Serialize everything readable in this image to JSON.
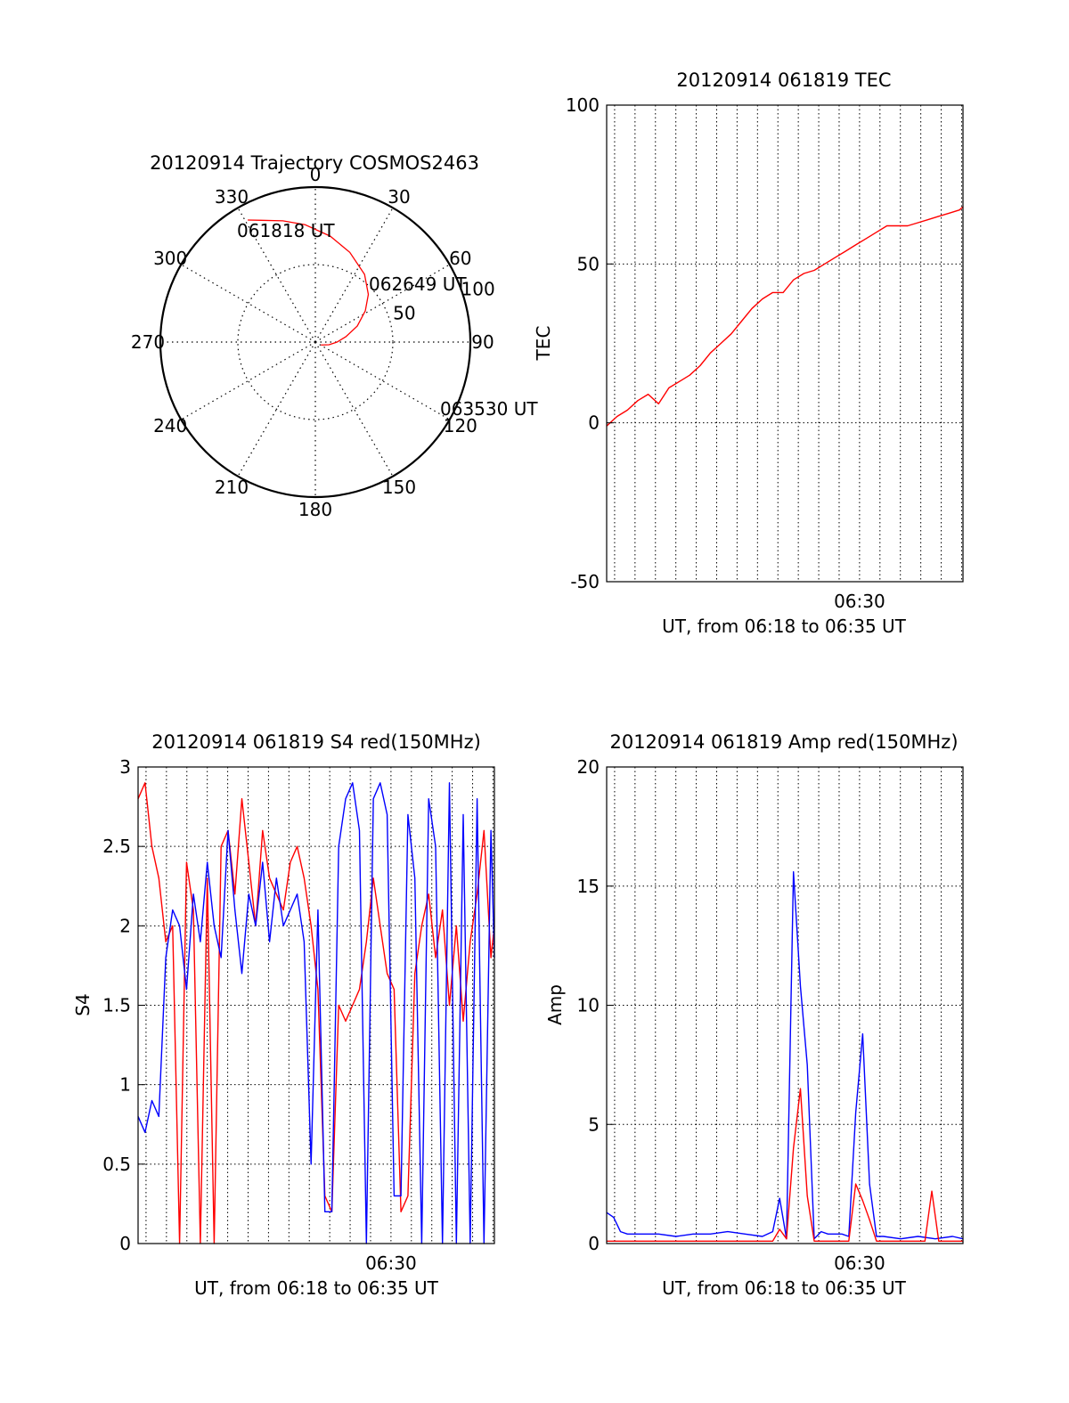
{
  "colors": {
    "red": "#ff0000",
    "blue": "#0000ff",
    "axis": "#000000",
    "grid": "#000000"
  },
  "chart_data": [
    {
      "id": "polar",
      "type": "scatter",
      "subtype": "polar-trajectory",
      "title": "20120914 Trajectory COSMOS2463",
      "azimuth_labels": [
        "0",
        "30",
        "60",
        "90",
        "120",
        "150",
        "180",
        "210",
        "240",
        "270",
        "300",
        "330"
      ],
      "radial_labels": [
        "50",
        "100"
      ],
      "radial_range": [
        0,
        100
      ],
      "track_labels": [
        "061818 UT",
        "062649 UT",
        "063530 UT"
      ],
      "series": [
        {
          "color": "#ff0000",
          "points": [
            [
              331,
              10
            ],
            [
              336,
              14
            ],
            [
              345,
              19
            ],
            [
              355,
              24
            ],
            [
              8,
              31
            ],
            [
              21,
              38
            ],
            [
              36,
              46
            ],
            [
              48,
              54
            ],
            [
              58,
              62
            ],
            [
              69,
              71
            ],
            [
              80,
              80
            ],
            [
              90,
              86
            ],
            [
              101,
              91
            ],
            [
              112,
              95
            ],
            [
              118,
              96
            ]
          ]
        }
      ]
    },
    {
      "id": "tec",
      "type": "line",
      "title": "20120914 061819 TEC",
      "xlabel": "UT, from 06:18 to 06:35 UT",
      "ylabel": "TEC",
      "xlim": [
        0,
        1030
      ],
      "ylim": [
        -50,
        100
      ],
      "yticks": [
        "-50",
        "0",
        "50",
        "100"
      ],
      "xtick_label": "06:30",
      "xtick_pos": 731,
      "grid": true,
      "series": [
        {
          "color": "#ff0000",
          "x": [
            0,
            30,
            60,
            90,
            120,
            150,
            180,
            210,
            240,
            270,
            300,
            330,
            360,
            390,
            420,
            450,
            480,
            510,
            540,
            570,
            600,
            630,
            660,
            690,
            720,
            750,
            780,
            810,
            840,
            870,
            900,
            930,
            960,
            990,
            1020,
            1030
          ],
          "y": [
            -1,
            2,
            4,
            7,
            9,
            6,
            11,
            13,
            15,
            18,
            22,
            25,
            28,
            32,
            36,
            39,
            41,
            41,
            45,
            47,
            48,
            50,
            52,
            54,
            56,
            58,
            60,
            62,
            62,
            62,
            63,
            64,
            65,
            66,
            67,
            68
          ]
        }
      ]
    },
    {
      "id": "s4",
      "type": "line",
      "title": "20120914 061819 S4 red(150MHz)",
      "xlabel": "UT, from 06:18 to 06:35 UT",
      "ylabel": "S4",
      "xlim": [
        0,
        1030
      ],
      "ylim": [
        0,
        3
      ],
      "yticks": [
        "0",
        "0.5",
        "1",
        "1.5",
        "2",
        "2.5",
        "3"
      ],
      "xtick_label": "06:30",
      "xtick_pos": 731,
      "grid": true,
      "series": [
        {
          "color": "#ff0000",
          "x": [
            0,
            20,
            40,
            60,
            80,
            100,
            120,
            140,
            160,
            180,
            200,
            220,
            240,
            260,
            280,
            300,
            320,
            340,
            360,
            380,
            400,
            420,
            440,
            460,
            480,
            500,
            520,
            540,
            560,
            580,
            600,
            620,
            640,
            660,
            680,
            700,
            720,
            740,
            760,
            780,
            800,
            820,
            840,
            860,
            880,
            900,
            920,
            940,
            960,
            980,
            1000,
            1020,
            1030
          ],
          "y": [
            2.8,
            2.9,
            2.5,
            2.3,
            1.9,
            2.0,
            0.0,
            2.4,
            2.1,
            0.0,
            2.3,
            0.0,
            2.5,
            2.6,
            2.2,
            2.8,
            2.4,
            2.0,
            2.6,
            2.3,
            2.2,
            2.1,
            2.4,
            2.5,
            2.3,
            2.0,
            1.6,
            0.3,
            0.2,
            1.5,
            1.4,
            1.5,
            1.6,
            1.9,
            2.3,
            2.0,
            1.7,
            1.6,
            0.2,
            0.3,
            1.7,
            2.0,
            2.2,
            1.8,
            2.1,
            1.5,
            2.0,
            1.4,
            1.9,
            2.2,
            2.6,
            1.8,
            2.0
          ]
        },
        {
          "color": "#0000ff",
          "x": [
            0,
            20,
            40,
            60,
            80,
            100,
            120,
            140,
            160,
            180,
            200,
            220,
            240,
            260,
            280,
            300,
            320,
            340,
            360,
            380,
            400,
            420,
            440,
            460,
            480,
            500,
            520,
            540,
            560,
            580,
            600,
            620,
            640,
            660,
            680,
            700,
            720,
            740,
            760,
            780,
            800,
            820,
            840,
            860,
            880,
            900,
            920,
            940,
            960,
            980,
            1000,
            1020,
            1030
          ],
          "y": [
            0.8,
            0.7,
            0.9,
            0.8,
            1.8,
            2.1,
            2.0,
            1.6,
            2.2,
            1.9,
            2.4,
            2.0,
            1.8,
            2.6,
            2.1,
            1.7,
            2.2,
            2.0,
            2.4,
            1.9,
            2.3,
            2.0,
            2.1,
            2.2,
            1.9,
            0.5,
            2.1,
            0.2,
            0.2,
            2.5,
            2.8,
            2.9,
            2.6,
            0.0,
            2.8,
            2.9,
            2.7,
            0.3,
            0.3,
            2.7,
            2.3,
            0.0,
            2.8,
            2.5,
            0.0,
            2.9,
            0.0,
            2.7,
            0.0,
            2.8,
            0.0,
            2.6,
            1.8
          ]
        }
      ]
    },
    {
      "id": "amp",
      "type": "line",
      "title": "20120914 061819 Amp red(150MHz)",
      "xlabel": "UT, from 06:18 to 06:35 UT",
      "ylabel": "Amp",
      "xlim": [
        0,
        1030
      ],
      "ylim": [
        0,
        20
      ],
      "yticks": [
        "0",
        "5",
        "10",
        "15",
        "20"
      ],
      "xtick_label": "06:30",
      "xtick_pos": 731,
      "grid": true,
      "series": [
        {
          "color": "#0000ff",
          "x": [
            0,
            20,
            40,
            60,
            80,
            100,
            150,
            200,
            250,
            300,
            350,
            400,
            450,
            480,
            500,
            520,
            540,
            560,
            580,
            600,
            620,
            640,
            660,
            680,
            700,
            720,
            740,
            760,
            780,
            800,
            850,
            900,
            950,
            1000,
            1030
          ],
          "y": [
            1.3,
            1.1,
            0.5,
            0.4,
            0.4,
            0.4,
            0.4,
            0.3,
            0.4,
            0.4,
            0.5,
            0.4,
            0.3,
            0.5,
            1.9,
            0.2,
            15.6,
            10.8,
            7.5,
            0.2,
            0.5,
            0.4,
            0.4,
            0.4,
            0.3,
            5.5,
            8.8,
            2.5,
            0.3,
            0.3,
            0.2,
            0.3,
            0.2,
            0.3,
            0.2
          ]
        },
        {
          "color": "#ff0000",
          "x": [
            0,
            100,
            200,
            300,
            400,
            480,
            500,
            520,
            540,
            560,
            580,
            600,
            650,
            700,
            720,
            740,
            760,
            780,
            850,
            900,
            920,
            940,
            960,
            1030
          ],
          "y": [
            0.1,
            0.1,
            0.1,
            0.1,
            0.1,
            0.1,
            0.6,
            0.2,
            4.0,
            6.5,
            2.0,
            0.1,
            0.1,
            0.1,
            2.5,
            1.8,
            1.0,
            0.1,
            0.1,
            0.1,
            0.1,
            2.2,
            0.1,
            0.1
          ]
        }
      ]
    }
  ]
}
